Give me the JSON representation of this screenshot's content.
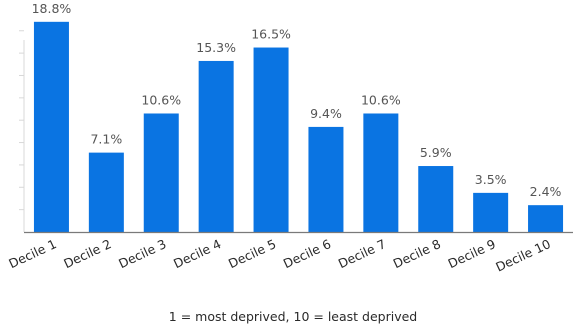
{
  "chart_data": {
    "type": "bar",
    "categories": [
      "Decile 1",
      "Decile 2",
      "Decile 3",
      "Decile 4",
      "Decile 5",
      "Decile 6",
      "Decile 7",
      "Decile 8",
      "Decile 9",
      "Decile 10"
    ],
    "values": [
      18.8,
      7.1,
      10.6,
      15.3,
      16.5,
      9.4,
      10.6,
      5.9,
      3.5,
      2.4
    ],
    "value_labels": [
      "18.8%",
      "7.1%",
      "10.6%",
      "15.3%",
      "16.5%",
      "9.4%",
      "10.6%",
      "5.9%",
      "3.5%",
      "2.4%"
    ],
    "title": "",
    "xlabel": "1 = most deprived, 10 = least deprived",
    "ylabel": "",
    "ylim": [
      0,
      20
    ],
    "grid": false,
    "legend": "none",
    "bar_color": "#0a74e2",
    "axis_color": "#7a7a7a"
  }
}
